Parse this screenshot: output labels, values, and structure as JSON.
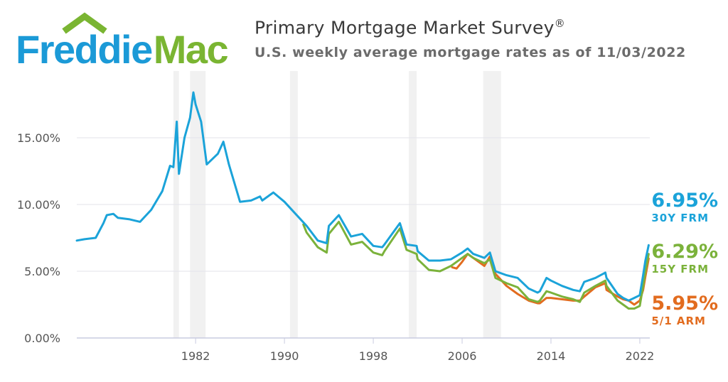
{
  "logo": {
    "text_part1": "Freddie",
    "text_part2": "Mac",
    "blue": "#1b9ad7",
    "green": "#7ab532"
  },
  "header": {
    "title": "Primary Mortgage Market Survey",
    "title_mark": "®",
    "subtitle": "U.S. weekly average mortgage rates as of 11/03/2022"
  },
  "callouts": [
    {
      "value": "6.95%",
      "label": "30Y FRM",
      "color": "#1ba3d9"
    },
    {
      "value": "6.29%",
      "label": "15Y FRM",
      "color": "#7bb23b"
    },
    {
      "value": "5.95%",
      "label": "5/1 ARM",
      "color": "#e26c1f"
    }
  ],
  "chart_data": {
    "type": "line",
    "title": "Primary Mortgage Market Survey",
    "subtitle": "U.S. weekly average mortgage rates as of 11/03/2022",
    "xlim": [
      1971.3,
      2022.9
    ],
    "ylim": [
      0,
      20
    ],
    "y_ticks": [
      0,
      5,
      10,
      15
    ],
    "y_tick_labels": [
      "0.00%",
      "5.00%",
      "10.00%",
      "15.00%"
    ],
    "x_ticks": [
      1982,
      1990,
      1998,
      2006,
      2014,
      2022
    ],
    "x_tick_labels": [
      "1982",
      "1990",
      "1998",
      "2006",
      "2014",
      "2022"
    ],
    "grid": "horizontal",
    "recessions": [
      [
        1980.0,
        1980.5
      ],
      [
        1981.5,
        1982.9
      ],
      [
        1990.5,
        1991.2
      ],
      [
        2001.2,
        2001.9
      ],
      [
        2007.9,
        2009.5
      ]
    ],
    "series": [
      {
        "name": "30Y FRM",
        "color": "#1ba3d9",
        "x": [
          1971.3,
          1972,
          1973,
          1973.7,
          1974,
          1974.6,
          1975,
          1976,
          1977,
          1978,
          1979,
          1979.7,
          1980,
          1980.3,
          1980.5,
          1981,
          1981.5,
          1981.8,
          1982,
          1982.5,
          1983,
          1984,
          1984.5,
          1985,
          1986,
          1987,
          1987.8,
          1988,
          1989,
          1990,
          1991,
          1992,
          1993,
          1993.8,
          1994,
          1994.9,
          1996,
          1997,
          1998,
          1998.8,
          1999,
          2000.4,
          2001,
          2001.9,
          2002,
          2003,
          2004,
          2005,
          2006,
          2006.5,
          2007,
          2008,
          2008.5,
          2009,
          2010,
          2011,
          2012,
          2012.8,
          2013,
          2013.6,
          2014,
          2015,
          2016,
          2016.6,
          2017,
          2018,
          2018.9,
          2019,
          2020,
          2020.5,
          2021,
          2021.5,
          2022,
          2022.3,
          2022.5,
          2022.8
        ],
        "y": [
          7.3,
          7.4,
          7.5,
          8.6,
          9.2,
          9.3,
          9.0,
          8.9,
          8.7,
          9.6,
          11.0,
          12.9,
          12.8,
          16.2,
          12.3,
          15.0,
          16.5,
          18.4,
          17.5,
          16.2,
          13.0,
          13.8,
          14.7,
          13.0,
          10.2,
          10.3,
          10.6,
          10.3,
          10.9,
          10.2,
          9.3,
          8.4,
          7.3,
          7.1,
          8.4,
          9.2,
          7.6,
          7.8,
          6.9,
          6.8,
          7.0,
          8.6,
          7.0,
          6.9,
          6.5,
          5.8,
          5.8,
          5.9,
          6.4,
          6.7,
          6.3,
          6.0,
          6.4,
          5.0,
          4.7,
          4.5,
          3.7,
          3.4,
          3.5,
          4.5,
          4.3,
          3.9,
          3.6,
          3.5,
          4.2,
          4.5,
          4.9,
          4.5,
          3.3,
          3.0,
          2.8,
          3.0,
          3.2,
          4.7,
          5.8,
          6.95
        ]
      },
      {
        "name": "15Y FRM",
        "color": "#7bb23b",
        "x": [
          1991.7,
          1992,
          1993,
          1993.8,
          1994,
          1994.9,
          1996,
          1997,
          1998,
          1998.8,
          1999,
          2000.4,
          2001,
          2001.9,
          2002,
          2003,
          2004,
          2005,
          2006,
          2006.5,
          2007,
          2008,
          2008.5,
          2009,
          2010,
          2011,
          2012,
          2012.8,
          2013,
          2013.6,
          2014,
          2015,
          2016,
          2016.6,
          2017,
          2018,
          2018.9,
          2019,
          2020,
          2020.5,
          2021,
          2021.5,
          2022,
          2022.3,
          2022.5,
          2022.8
        ],
        "y": [
          8.5,
          7.9,
          6.8,
          6.4,
          7.8,
          8.7,
          7.0,
          7.2,
          6.4,
          6.2,
          6.5,
          8.2,
          6.6,
          6.3,
          5.9,
          5.1,
          5.0,
          5.4,
          6.0,
          6.3,
          6.0,
          5.6,
          5.9,
          4.5,
          4.1,
          3.8,
          2.9,
          2.7,
          2.8,
          3.5,
          3.4,
          3.1,
          2.9,
          2.7,
          3.4,
          3.9,
          4.3,
          3.9,
          2.8,
          2.5,
          2.2,
          2.2,
          2.4,
          3.9,
          5.0,
          6.29
        ]
      },
      {
        "name": "5/1 ARM",
        "color": "#e26c1f",
        "x": [
          2005.1,
          2005.5,
          2006,
          2006.5,
          2007,
          2008,
          2008.5,
          2009,
          2010,
          2011,
          2012,
          2012.8,
          2013,
          2013.6,
          2014,
          2015,
          2016,
          2016.6,
          2017,
          2018,
          2018.9,
          2019,
          2020,
          2020.5,
          2021,
          2021.5,
          2022,
          2022.3,
          2022.5,
          2022.8
        ],
        "y": [
          5.3,
          5.2,
          5.7,
          6.3,
          6.0,
          5.4,
          6.1,
          4.8,
          3.9,
          3.3,
          2.8,
          2.6,
          2.6,
          3.0,
          3.0,
          2.9,
          2.8,
          2.8,
          3.1,
          3.8,
          4.1,
          3.6,
          3.1,
          2.9,
          2.8,
          2.5,
          2.8,
          3.6,
          4.6,
          5.95
        ]
      }
    ]
  }
}
